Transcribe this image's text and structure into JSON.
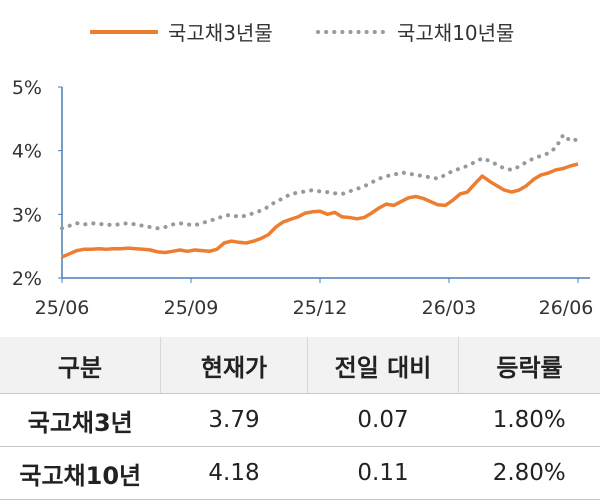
{
  "chart_data": {
    "type": "line",
    "title": "",
    "xlabel": "",
    "ylabel": "",
    "x_ticks": [
      "25/06",
      "25/09",
      "25/12",
      "26/03",
      "26/06"
    ],
    "y_ticks": [
      "2%",
      "3%",
      "4%",
      "5%"
    ],
    "ylim": [
      2,
      5
    ],
    "grid": false,
    "legend": "top",
    "series": [
      {
        "name": "국고채3년물",
        "color": "#ed7d31",
        "style": "solid",
        "values": [
          2.33,
          2.38,
          2.43,
          2.45,
          2.45,
          2.46,
          2.45,
          2.46,
          2.46,
          2.47,
          2.46,
          2.45,
          2.44,
          2.41,
          2.4,
          2.42,
          2.44,
          2.42,
          2.44,
          2.43,
          2.42,
          2.45,
          2.55,
          2.58,
          2.56,
          2.55,
          2.58,
          2.62,
          2.68,
          2.8,
          2.88,
          2.92,
          2.96,
          3.02,
          3.04,
          3.05,
          3.0,
          3.03,
          2.96,
          2.95,
          2.93,
          2.95,
          3.02,
          3.1,
          3.16,
          3.14,
          3.2,
          3.26,
          3.28,
          3.25,
          3.2,
          3.15,
          3.14,
          3.22,
          3.32,
          3.35,
          3.48,
          3.6,
          3.52,
          3.45,
          3.38,
          3.35,
          3.38,
          3.45,
          3.55,
          3.62,
          3.65,
          3.7,
          3.72,
          3.76,
          3.79
        ]
      },
      {
        "name": "국고채10년물",
        "color": "#999999",
        "style": "dotted",
        "values": [
          2.78,
          2.82,
          2.86,
          2.84,
          2.86,
          2.85,
          2.84,
          2.83,
          2.85,
          2.86,
          2.84,
          2.82,
          2.8,
          2.78,
          2.8,
          2.84,
          2.86,
          2.84,
          2.83,
          2.86,
          2.9,
          2.93,
          2.98,
          2.99,
          2.96,
          2.98,
          3.02,
          3.06,
          3.12,
          3.2,
          3.25,
          3.32,
          3.34,
          3.36,
          3.38,
          3.36,
          3.35,
          3.33,
          3.32,
          3.36,
          3.4,
          3.44,
          3.5,
          3.56,
          3.6,
          3.62,
          3.66,
          3.64,
          3.62,
          3.6,
          3.58,
          3.56,
          3.62,
          3.68,
          3.72,
          3.76,
          3.82,
          3.88,
          3.84,
          3.78,
          3.72,
          3.7,
          3.75,
          3.82,
          3.88,
          3.92,
          3.96,
          4.05,
          4.25,
          4.15,
          4.18
        ]
      }
    ]
  },
  "table": {
    "headers": [
      "구분",
      "현재가",
      "전일 대비",
      "등락률"
    ],
    "rows": [
      {
        "name": "국고채3년",
        "price": "3.79",
        "change": "0.07",
        "rate": "1.80%"
      },
      {
        "name": "국고채10년",
        "price": "4.18",
        "change": "0.11",
        "rate": "2.80%"
      }
    ]
  }
}
